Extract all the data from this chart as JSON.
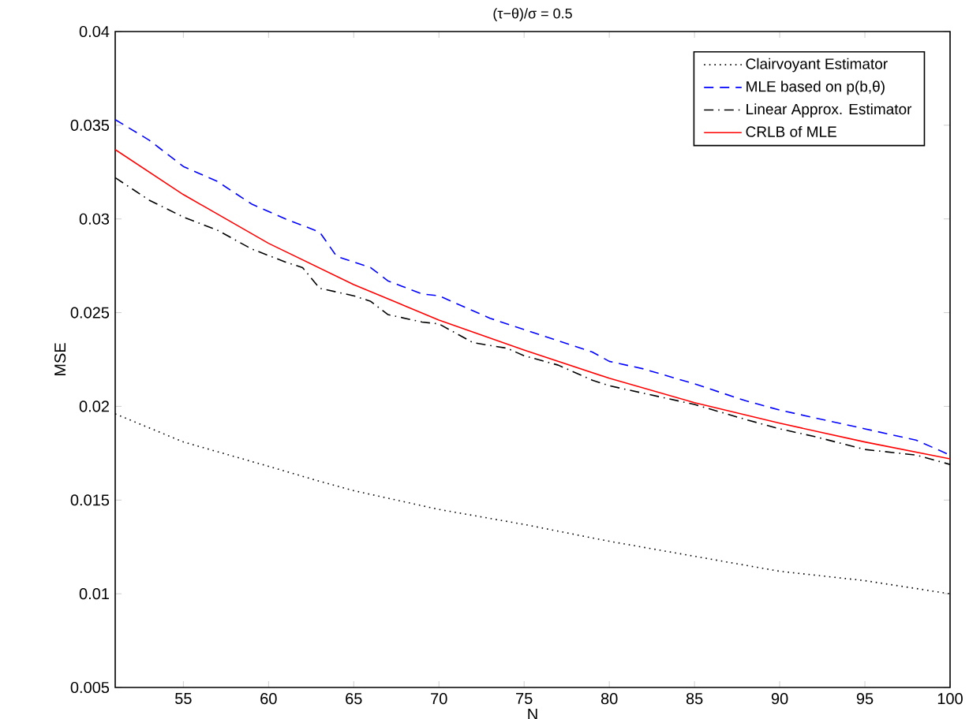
{
  "chart_data": {
    "type": "line",
    "title": "(τ−θ)/σ = 0.5",
    "xlabel": "N",
    "ylabel": "MSE",
    "xlim": [
      51,
      100
    ],
    "ylim": [
      0.005,
      0.04
    ],
    "xticks": [
      55,
      60,
      65,
      70,
      75,
      80,
      85,
      90,
      95,
      100
    ],
    "yticks": [
      0.005,
      0.01,
      0.015,
      0.02,
      0.025,
      0.03,
      0.035,
      0.04
    ],
    "grid": false,
    "legend": "top right",
    "marker": "none",
    "series": [
      {
        "name": "Clairvoyant Estimator",
        "color": "#000000",
        "line_style": "dotted",
        "x": [
          51,
          55,
          60,
          63,
          65,
          70,
          75,
          80,
          85,
          90,
          95,
          100
        ],
        "values": [
          0.0196,
          0.0181,
          0.0168,
          0.016,
          0.0155,
          0.0145,
          0.0137,
          0.0128,
          0.012,
          0.0112,
          0.0107,
          0.01
        ]
      },
      {
        "name": "MLE based on p(b,θ)",
        "color": "#0000ff",
        "line_style": "dashed",
        "x": [
          51,
          53,
          55,
          57,
          59,
          61,
          63,
          64,
          66,
          67,
          69,
          70,
          72,
          73,
          75,
          77,
          79,
          80,
          82,
          85,
          88,
          90,
          93,
          95,
          98,
          100
        ],
        "values": [
          0.0353,
          0.0342,
          0.0328,
          0.032,
          0.0308,
          0.03,
          0.0293,
          0.028,
          0.0274,
          0.0267,
          0.026,
          0.0259,
          0.0251,
          0.0247,
          0.0241,
          0.0235,
          0.0229,
          0.0224,
          0.022,
          0.0212,
          0.0203,
          0.0198,
          0.0192,
          0.0188,
          0.0182,
          0.0174
        ]
      },
      {
        "name": "Linear Approx. Estimator",
        "color": "#000000",
        "line_style": "dashdot",
        "x": [
          51,
          53,
          55,
          57,
          59,
          61,
          62,
          63,
          65,
          66,
          67,
          69,
          70,
          72,
          74,
          75,
          77,
          79,
          80,
          82,
          85,
          88,
          90,
          92,
          95,
          98,
          100
        ],
        "values": [
          0.0322,
          0.031,
          0.0301,
          0.0294,
          0.0284,
          0.0277,
          0.0274,
          0.0263,
          0.0259,
          0.0256,
          0.0249,
          0.0245,
          0.0244,
          0.0234,
          0.0231,
          0.0227,
          0.0222,
          0.0214,
          0.0211,
          0.0207,
          0.0201,
          0.0193,
          0.0188,
          0.0184,
          0.0177,
          0.0174,
          0.0169
        ]
      },
      {
        "name": "CRLB of MLE",
        "color": "#ff0000",
        "line_style": "solid",
        "x": [
          51,
          55,
          60,
          65,
          70,
          75,
          80,
          85,
          90,
          95,
          100
        ],
        "values": [
          0.0337,
          0.0313,
          0.0287,
          0.0265,
          0.0246,
          0.023,
          0.0215,
          0.0202,
          0.0191,
          0.0181,
          0.0172
        ]
      }
    ]
  }
}
